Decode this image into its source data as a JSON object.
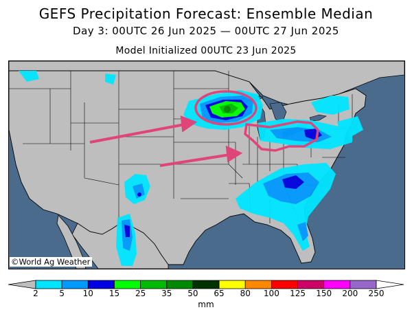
{
  "header": {
    "title": "GEFS Precipitation Forecast: Ensemble Median",
    "subtitle": "Day 3: 00UTC 26 Jun 2025 — 00UTC 27 Jun 2025",
    "initialized": "Model Initialized 00UTC 23 Jun 2025"
  },
  "map": {
    "credit": "©World Ag Weather",
    "land_color": "#bebebe",
    "water_color": "#4a6b8c",
    "annotation_color": "#e0457a"
  },
  "legend": {
    "units": "mm",
    "ticks": [
      "2",
      "5",
      "10",
      "15",
      "25",
      "35",
      "50",
      "65",
      "80",
      "100",
      "125",
      "150",
      "200",
      "250"
    ],
    "colors": [
      "#00e5ff",
      "#0099ff",
      "#0000e0",
      "#00ff00",
      "#00bb00",
      "#008800",
      "#003300",
      "#ffff00",
      "#ff8800",
      "#ff0000",
      "#cc0066",
      "#ff00ff",
      "#9966cc"
    ],
    "under_color": "#bebebe",
    "over_color": "#ffffff"
  }
}
